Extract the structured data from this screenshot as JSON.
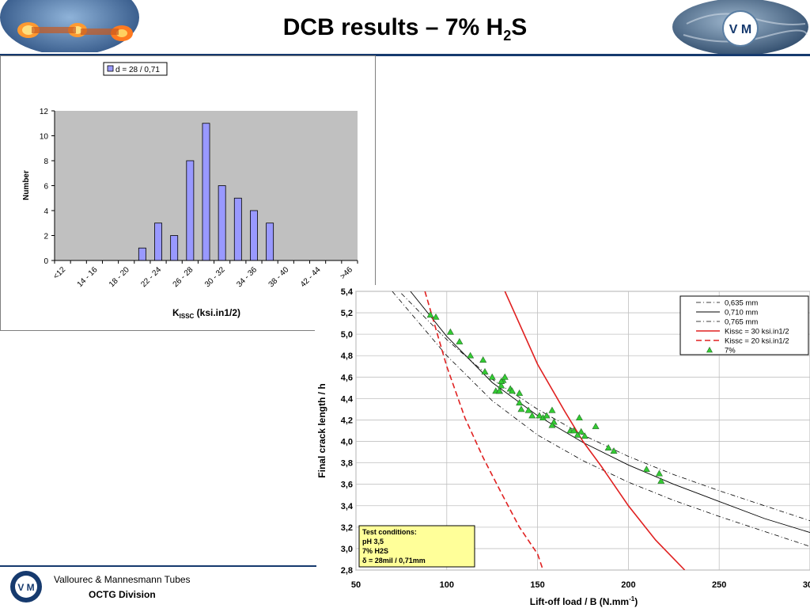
{
  "page": {
    "title_main": "DCB results – 7% H",
    "title_sub": "2",
    "title_end": "S",
    "logo_text": "V M",
    "footer_company": "Vallourec & Mannesmann Tubes",
    "footer_division": "OCTG Division"
  },
  "colors": {
    "bar_fill": "#9999ff",
    "plot_bg": "#c0c0c0",
    "brand": "#163a6e",
    "red": "#e02020",
    "marker": "#33cc33",
    "box_fill": "#ffff99"
  },
  "chart_data": [
    {
      "type": "bar",
      "categories": [
        "<12",
        "12 - 14",
        "14 - 16",
        "16 - 18",
        "18 - 20",
        "20 - 22",
        "22 - 24",
        "24 - 26",
        "26 - 28",
        "28 - 30",
        "30 - 32",
        "32 - 34",
        "34 - 36",
        "36 - 38",
        "38 - 40",
        "40 - 42",
        "42 - 44",
        "44 - 46",
        ">46"
      ],
      "tick_labels": [
        "<12",
        "14 - 16",
        "18 - 20",
        "22 - 24",
        "26 - 28",
        "30 - 32",
        "34 - 36",
        "38 - 40",
        "42 - 44",
        ">46"
      ],
      "series": [
        {
          "name": "d = 28 / 0,71",
          "values": [
            0,
            0,
            0,
            0,
            0,
            1,
            3,
            2,
            8,
            11,
            6,
            5,
            4,
            3,
            0,
            0,
            0,
            0,
            0
          ]
        }
      ],
      "xlabel_main": "K",
      "xlabel_sub": "ISSC",
      "xlabel_end": " (ksi.in1/2)",
      "ylabel": "Number",
      "ylim": [
        0,
        12
      ],
      "yticks": [
        "0",
        "2",
        "4",
        "6",
        "8",
        "10",
        "12"
      ],
      "legend_position": "top-center",
      "grid": false
    },
    {
      "type": "scatter",
      "xlabel_main": "Lift-off load / B (N.mm",
      "xlabel_sup": "-1",
      "xlabel_end": ")",
      "ylabel": "Final crack length / h",
      "xlim": [
        50,
        300
      ],
      "ylim": [
        2.8,
        5.4
      ],
      "xticks": [
        "50",
        "100",
        "150",
        "200",
        "250",
        "300"
      ],
      "yticks": [
        "2,8",
        "3,0",
        "3,2",
        "3,4",
        "3,6",
        "3,8",
        "4,0",
        "4,2",
        "4,4",
        "4,6",
        "4,8",
        "5,0",
        "5,2",
        "5,4"
      ],
      "grid": true,
      "legend_position": "top-right",
      "legend": [
        "0,635 mm",
        "0,710 mm",
        "0,765 mm",
        "Kissc = 30 ksi.in1/2",
        "Kissc = 20 ksi.in1/2",
        "7%"
      ],
      "series": [
        {
          "name": "0,635 mm",
          "style": "dashdot",
          "x": [
            75,
            100,
            125,
            150,
            175,
            200,
            225,
            250,
            275,
            300
          ],
          "y": [
            5.38,
            4.95,
            4.58,
            4.3,
            4.06,
            3.86,
            3.69,
            3.54,
            3.4,
            3.26
          ]
        },
        {
          "name": "0,710 mm",
          "style": "solid",
          "x": [
            80,
            100,
            125,
            150,
            175,
            200,
            225,
            250,
            275,
            300
          ],
          "y": [
            5.4,
            4.98,
            4.55,
            4.24,
            3.99,
            3.78,
            3.6,
            3.44,
            3.28,
            3.15
          ]
        },
        {
          "name": "0,765 mm",
          "style": "dashdot",
          "x": [
            70,
            100,
            125,
            150,
            175,
            200,
            225,
            250,
            275,
            300
          ],
          "y": [
            5.4,
            4.8,
            4.38,
            4.06,
            3.82,
            3.62,
            3.45,
            3.3,
            3.16,
            3.02
          ]
        },
        {
          "name": "Kissc = 30 ksi.in1/2",
          "style": "solid-red",
          "x": [
            132,
            150,
            165,
            175,
            185,
            200,
            215,
            231
          ],
          "y": [
            5.4,
            4.72,
            4.28,
            4.0,
            3.77,
            3.4,
            3.08,
            2.8
          ]
        },
        {
          "name": "Kissc = 20 ksi.in1/2",
          "style": "dashed-red",
          "x": [
            88,
            100,
            110,
            120,
            130,
            140,
            150,
            153
          ],
          "y": [
            5.4,
            4.7,
            4.22,
            3.85,
            3.52,
            3.2,
            2.95,
            2.8
          ]
        },
        {
          "name": "7%",
          "style": "marker",
          "x": [
            91,
            94,
            102,
            107,
            113,
            120,
            121,
            125,
            127,
            129,
            130,
            131,
            130,
            132,
            129,
            135,
            140,
            136,
            140,
            141,
            145,
            147,
            151,
            153,
            155,
            158,
            159,
            158,
            168,
            170,
            173,
            174,
            172,
            176,
            182,
            189,
            192,
            210,
            217,
            218
          ],
          "y": [
            5.18,
            5.16,
            5.02,
            4.93,
            4.8,
            4.76,
            4.65,
            4.6,
            4.47,
            4.47,
            4.52,
            4.57,
            4.56,
            4.6,
            4.47,
            4.49,
            4.45,
            4.47,
            4.36,
            4.3,
            4.29,
            4.24,
            4.24,
            4.22,
            4.24,
            4.29,
            4.18,
            4.15,
            4.1,
            4.1,
            4.22,
            4.09,
            4.06,
            4.05,
            4.14,
            3.94,
            3.91,
            3.74,
            3.7,
            3.63
          ]
        }
      ],
      "annotation": {
        "title": "Test conditions:",
        "lines": [
          "pH 3,5",
          "7% H2S",
          "δ = 28mil / 0,71mm"
        ]
      }
    }
  ]
}
